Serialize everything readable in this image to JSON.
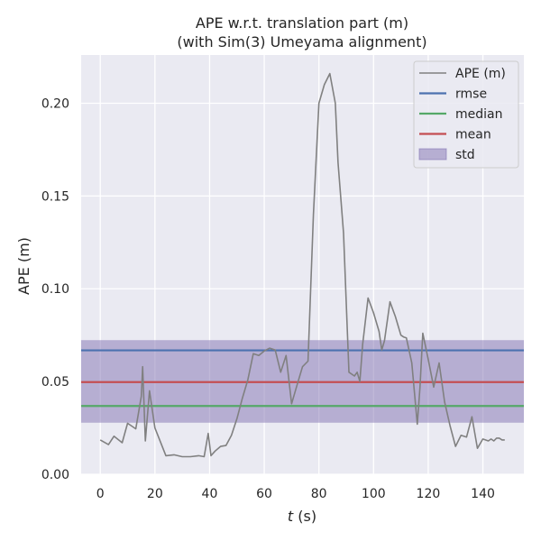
{
  "chart_data": {
    "type": "line",
    "title": "APE w.r.t. translation part (m)",
    "subtitle": "(with Sim(3) Umeyama alignment)",
    "xlabel_var": "t",
    "xlabel_unit": " (s)",
    "ylabel": "APE (m)",
    "xlim": [
      -7,
      155
    ],
    "ylim": [
      0,
      0.226
    ],
    "xticks": [
      0,
      20,
      40,
      60,
      80,
      100,
      120,
      140
    ],
    "yticks": [
      0.0,
      0.05,
      0.1,
      0.15,
      0.2
    ],
    "xtick_labels": [
      "0",
      "20",
      "40",
      "60",
      "80",
      "100",
      "120",
      "140"
    ],
    "ytick_labels": [
      "0.00",
      "0.05",
      "0.10",
      "0.15",
      "0.20"
    ],
    "grid": true,
    "legend_position": "top-right",
    "colors": {
      "background": "#eaeaf2",
      "grid": "#ffffff",
      "ape": "#808080",
      "rmse": "#4c72b0",
      "median": "#55a868",
      "mean": "#c44e52",
      "std_fill": "#8172b2"
    },
    "legend": [
      {
        "key": "ape",
        "label": "APE (m)",
        "kind": "line"
      },
      {
        "key": "rmse",
        "label": "rmse",
        "kind": "line"
      },
      {
        "key": "median",
        "label": "median",
        "kind": "line"
      },
      {
        "key": "mean",
        "label": "mean",
        "kind": "line"
      },
      {
        "key": "std",
        "label": "std",
        "kind": "patch"
      }
    ],
    "stats": {
      "rmse": 0.0668,
      "median": 0.0368,
      "mean": 0.0497,
      "std_low": 0.0278,
      "std_high": 0.0723
    },
    "series": [
      {
        "name": "APE (m)",
        "x": [
          0,
          3,
          5,
          8,
          10,
          13,
          15,
          15.5,
          16.5,
          18,
          20,
          24,
          27,
          30,
          33,
          36,
          38,
          39.5,
          40.5,
          42,
          44,
          46,
          48,
          50,
          52,
          54,
          56,
          58,
          60,
          62,
          64,
          66,
          68,
          70,
          72,
          74,
          76,
          78,
          80,
          82,
          84,
          86,
          87,
          89,
          91,
          93,
          94,
          95,
          96,
          98,
          100,
          102,
          103,
          104,
          106,
          108,
          110,
          111,
          112,
          114,
          116,
          117,
          118,
          120,
          122,
          124,
          126,
          128,
          130,
          132,
          134,
          136,
          138,
          140,
          142,
          143,
          144,
          145,
          146,
          147,
          148
        ],
        "y": [
          0.0185,
          0.016,
          0.0205,
          0.017,
          0.0275,
          0.0245,
          0.042,
          0.058,
          0.018,
          0.045,
          0.025,
          0.01,
          0.0105,
          0.0095,
          0.0095,
          0.01,
          0.0095,
          0.022,
          0.01,
          0.0125,
          0.015,
          0.0155,
          0.021,
          0.03,
          0.041,
          0.051,
          0.065,
          0.064,
          0.0665,
          0.068,
          0.067,
          0.055,
          0.064,
          0.038,
          0.048,
          0.058,
          0.061,
          0.14,
          0.2,
          0.21,
          0.216,
          0.2,
          0.168,
          0.13,
          0.055,
          0.053,
          0.055,
          0.05,
          0.07,
          0.095,
          0.087,
          0.077,
          0.067,
          0.072,
          0.093,
          0.085,
          0.075,
          0.074,
          0.0735,
          0.06,
          0.027,
          0.047,
          0.076,
          0.062,
          0.047,
          0.06,
          0.039,
          0.026,
          0.015,
          0.021,
          0.02,
          0.031,
          0.014,
          0.019,
          0.018,
          0.019,
          0.018,
          0.0195,
          0.0195,
          0.0185,
          0.0185
        ]
      }
    ]
  }
}
